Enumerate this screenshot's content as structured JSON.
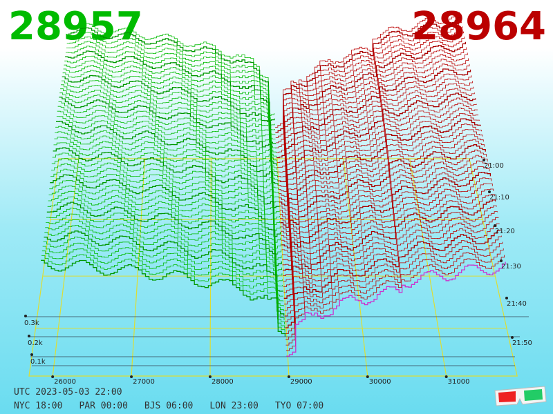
{
  "header": {
    "bid_price": "28957",
    "ask_price": "28964",
    "bid_color": "#00bb00",
    "ask_color": "#bb0000"
  },
  "chart_data": {
    "type": "area",
    "x_tick_labels": [
      "26000",
      "27000",
      "28000",
      "29000",
      "30000",
      "31000"
    ],
    "x_ticks": [
      26000,
      27000,
      28000,
      29000,
      30000,
      31000
    ],
    "xlim": [
      25700,
      31900
    ],
    "depth_tick_labels": [
      "0.1k",
      "0.2k",
      "0.3k"
    ],
    "time_tick_labels": [
      "21:00",
      "21:10",
      "21:20",
      "21:30",
      "21:40",
      "21:50"
    ],
    "mid_price": 28960,
    "bid_price": 28957,
    "ask_price": 28964,
    "series": [
      {
        "side": "bid",
        "color": "#00bb00"
      },
      {
        "side": "ask",
        "color": "#bb0000"
      }
    ],
    "latest_ask_color": "#cc33cc",
    "gridline_color": "#dddd33",
    "grid": true
  },
  "footer": {
    "utc": "UTC 2023-05-03 22:00",
    "zones": [
      "NYC 18:00",
      "PAR 00:00",
      "BJS 06:00",
      "LON 23:00",
      "TYO 07:00"
    ]
  },
  "icons": {
    "glasses": "3d-glasses-icon"
  }
}
